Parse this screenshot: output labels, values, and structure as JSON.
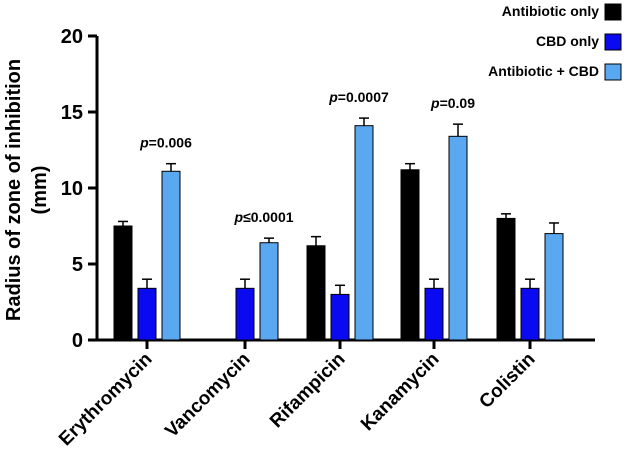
{
  "chart_data": {
    "type": "bar",
    "ylabel_line1": "Radius of zone of inhibition",
    "ylabel_line2": "(mm)",
    "ylim": [
      0,
      20
    ],
    "yticks": [
      0,
      5,
      10,
      15,
      20
    ],
    "categories": [
      "Erythromycin",
      "Vancomycin",
      "Rifampicin",
      "Kanamycin",
      "Colistin"
    ],
    "series": [
      {
        "name": "Antibiotic only",
        "color": "#000000",
        "values": [
          7.5,
          null,
          6.2,
          11.2,
          8.0
        ],
        "errors": [
          0.3,
          null,
          0.6,
          0.4,
          0.3
        ]
      },
      {
        "name": "CBD only",
        "color": "#0a0af0",
        "values": [
          3.4,
          3.4,
          3.0,
          3.4,
          3.4
        ],
        "errors": [
          0.6,
          0.6,
          0.6,
          0.6,
          0.6
        ]
      },
      {
        "name": "Antibiotic + CBD",
        "color": "#5aa8f0",
        "values": [
          11.1,
          6.4,
          14.1,
          13.4,
          7.0
        ],
        "errors": [
          0.5,
          0.3,
          0.5,
          0.8,
          0.7
        ]
      }
    ],
    "annotations": [
      {
        "category": "Erythromycin",
        "p": "p",
        "rest": "=0.006"
      },
      {
        "category": "Vancomycin",
        "p": "p",
        "rest": "≤0.0001"
      },
      {
        "category": "Rifampicin",
        "p": "p",
        "rest": "=0.0007"
      },
      {
        "category": "Kanamycin",
        "p": "p",
        "rest": "=0.09"
      }
    ],
    "legend_position": "top-right"
  }
}
